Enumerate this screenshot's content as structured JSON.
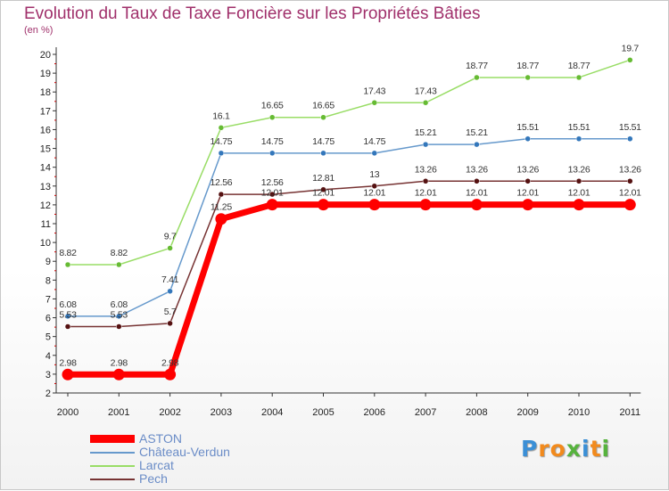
{
  "title": "Evolution du Taux de Taxe Foncière sur les Propriétés Bâties",
  "subtitle": "(en %)",
  "brand": {
    "letters": [
      "P",
      "r",
      "o",
      "x",
      "i",
      "t",
      "i"
    ],
    "colors": [
      "#3b8fd6",
      "#f28a1c",
      "#f28a1c",
      "#56b33d",
      "#3b8fd6",
      "#f28a1c",
      "#56b33d"
    ]
  },
  "chart_data": {
    "type": "line",
    "title": "Evolution du Taux de Taxe Foncière sur les Propriétés Bâties",
    "ylabel": "(en %)",
    "xlabel": "",
    "ylim": [
      2,
      20
    ],
    "grid": false,
    "categories": [
      "2000",
      "2001",
      "2002",
      "2003",
      "2004",
      "2005",
      "2006",
      "2007",
      "2008",
      "2009",
      "2010",
      "2011"
    ],
    "yticks": [
      "2",
      "3",
      "4",
      "5",
      "6",
      "7",
      "8",
      "9",
      "10",
      "11",
      "12",
      "13",
      "14",
      "15",
      "16",
      "17",
      "18",
      "19",
      "20"
    ],
    "legend_position": "bottom-left",
    "series": [
      {
        "name": "Larcat",
        "color": "#99dd66",
        "marker_color": "#66bb33",
        "values": [
          8.82,
          8.82,
          9.7,
          16.1,
          16.65,
          16.65,
          17.43,
          17.43,
          18.77,
          18.77,
          18.77,
          19.7
        ],
        "labels": [
          "8.82",
          "8.82",
          "9.7",
          "16.1",
          "16.65",
          "16.65",
          "17.43",
          "17.43",
          "18.77",
          "18.77",
          "18.77",
          "19.7"
        ]
      },
      {
        "name": "Château-Verdun",
        "color": "#6699cc",
        "marker_color": "#3377bb",
        "values": [
          6.08,
          6.08,
          7.41,
          14.75,
          14.75,
          14.75,
          14.75,
          15.21,
          15.21,
          15.51,
          15.51,
          15.51
        ],
        "labels": [
          "6.08",
          "6.08",
          "7.41",
          "14.75",
          "14.75",
          "14.75",
          "14.75",
          "15.21",
          "15.21",
          "15.51",
          "15.51",
          "15.51"
        ]
      },
      {
        "name": "Pech",
        "color": "#773333",
        "marker_color": "#551111",
        "values": [
          5.53,
          5.53,
          5.7,
          12.56,
          12.56,
          12.81,
          13,
          13.26,
          13.26,
          13.26,
          13.26,
          13.26
        ],
        "labels": [
          "5.53",
          "5.53",
          "5.7",
          "12.56",
          "12.56",
          "12.81",
          "13",
          "13.26",
          "13.26",
          "13.26",
          "13.26",
          "13.26"
        ]
      },
      {
        "name": "ASTON",
        "color": "#ff0000",
        "marker_color": "#ff0000",
        "values": [
          2.98,
          2.98,
          2.98,
          11.25,
          12.01,
          12.01,
          12.01,
          12.01,
          12.01,
          12.01,
          12.01,
          12.01
        ],
        "labels": [
          "2.98",
          "2.98",
          "2.98",
          "11.25",
          "12.01",
          "12.01",
          "12.01",
          "12.01",
          "12.01",
          "12.01",
          "12.01",
          "12.01"
        ]
      }
    ],
    "legend": [
      "ASTON",
      "Château-Verdun",
      "Larcat",
      "Pech"
    ]
  }
}
